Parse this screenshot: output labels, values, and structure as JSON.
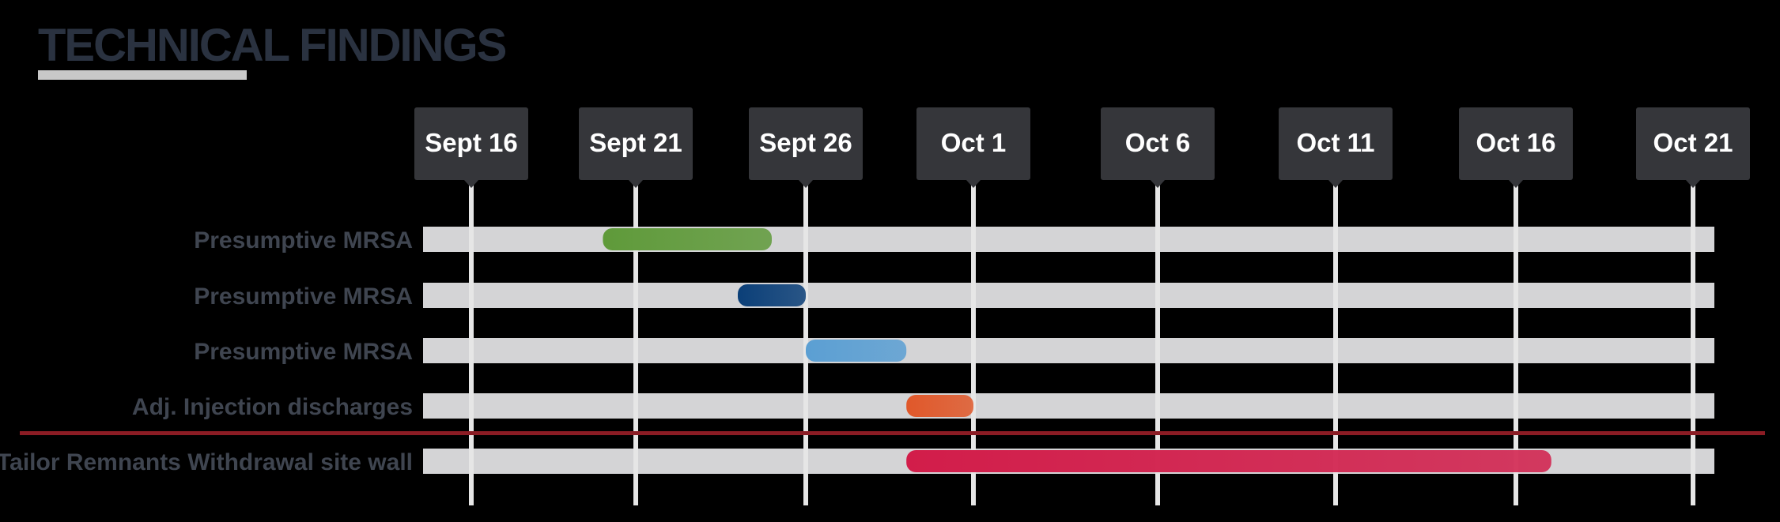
{
  "title": "Technical Findings",
  "chart_data": {
    "type": "gantt",
    "x_ticks": [
      "Sept 16",
      "Sept 21",
      "Sept 26",
      "Oct 1",
      "Oct 6",
      "Oct 11",
      "Oct 16",
      "Oct 21"
    ],
    "xlim": [
      "Sept 16",
      "Oct 21"
    ],
    "tasks": [
      {
        "label": "Presumptive MRSA",
        "start": "Sept 20",
        "end": "Sept 25",
        "color": "#5f9a3a"
      },
      {
        "label": "Presumptive MRSA",
        "start": "Sept 24",
        "end": "Sept 26",
        "color": "#0b3f78"
      },
      {
        "label": "Presumptive MRSA",
        "start": "Sept 26",
        "end": "Sept 29",
        "color": "#5b9fd3"
      },
      {
        "label": "Adj. Injection discharges",
        "start": "Sept 29",
        "end": "Oct 1",
        "color": "#e0582a"
      },
      {
        "label": "Tailor Remnants Withdrawal site wall",
        "start": "Sept 29",
        "end": "Oct 17",
        "color": "#d21d4a"
      }
    ],
    "colors": {
      "background": "#000000",
      "track": "#d4d4d6",
      "gridline": "#e6e6e6",
      "tick_box": "#35363a",
      "tick_text": "#ffffff",
      "row_label": "#3f4550",
      "divider": "#8b1c24"
    },
    "grid": true
  }
}
